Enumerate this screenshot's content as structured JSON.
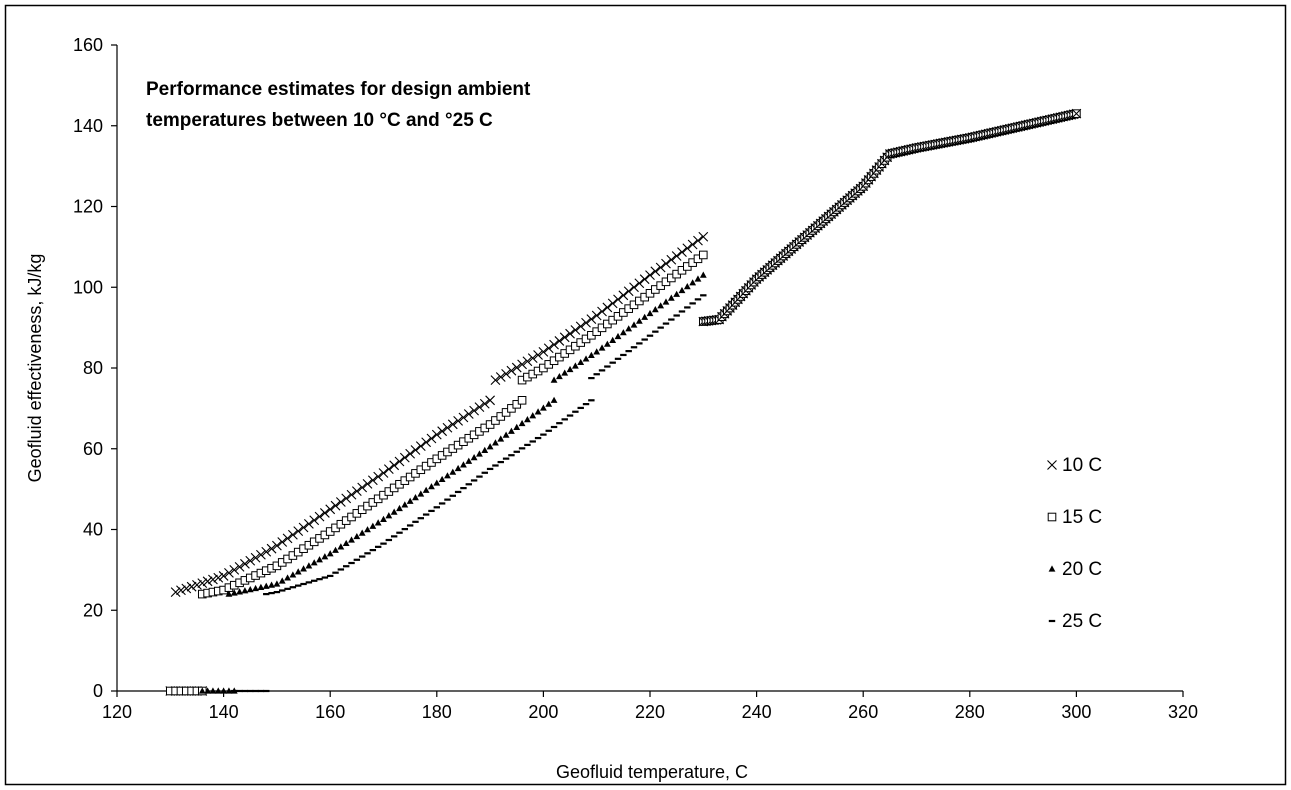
{
  "chart_data": {
    "type": "scatter",
    "title": "",
    "annotation_lines": [
      "Performance estimates for design ambient",
      "temperatures between 10 °C and °25 C"
    ],
    "xlabel": "Geofluid temperature, C",
    "ylabel": "Geofluid effectiveness, kJ/kg",
    "xlim": [
      120,
      320
    ],
    "ylim": [
      0,
      160
    ],
    "xticks": [
      120,
      140,
      160,
      180,
      200,
      220,
      240,
      260,
      280,
      300,
      320
    ],
    "yticks": [
      0,
      20,
      40,
      60,
      80,
      100,
      120,
      140,
      160
    ],
    "grid": false,
    "legend_position": "right",
    "series": [
      {
        "name": "10 C",
        "marker": "x",
        "segments": [
          {
            "x0": 130,
            "x1": 136,
            "step": 1,
            "points": [
              [
                130,
                0
              ],
              [
                136,
                0
              ]
            ]
          },
          {
            "x0": 131,
            "x1": 190,
            "step": 1,
            "points": [
              [
                131,
                24.5
              ],
              [
                140,
                28.5
              ],
              [
                150,
                36
              ],
              [
                160,
                45
              ],
              [
                170,
                54
              ],
              [
                180,
                63.5
              ],
              [
                190,
                72
              ]
            ]
          },
          {
            "x0": 191,
            "x1": 230,
            "step": 1,
            "points": [
              [
                191,
                77
              ],
              [
                200,
                84
              ],
              [
                210,
                93
              ],
              [
                220,
                103
              ],
              [
                230,
                112.5
              ]
            ]
          }
        ]
      },
      {
        "name": "15 C",
        "marker": "square",
        "segments": [
          {
            "x0": 130,
            "x1": 136,
            "step": 1,
            "points": [
              [
                130,
                0
              ],
              [
                136,
                0
              ]
            ]
          },
          {
            "x0": 136,
            "x1": 196,
            "step": 1,
            "points": [
              [
                136,
                24
              ],
              [
                140,
                25
              ],
              [
                150,
                31
              ],
              [
                160,
                39.5
              ],
              [
                170,
                48.5
              ],
              [
                180,
                57.5
              ],
              [
                190,
                66
              ],
              [
                196,
                72
              ]
            ]
          },
          {
            "x0": 196,
            "x1": 230,
            "step": 1,
            "points": [
              [
                196,
                77
              ],
              [
                200,
                80
              ],
              [
                210,
                89
              ],
              [
                220,
                98.5
              ],
              [
                230,
                108
              ]
            ]
          }
        ]
      },
      {
        "name": "20 C",
        "marker": "triangle",
        "segments": [
          {
            "x0": 136,
            "x1": 142,
            "step": 1,
            "points": [
              [
                136,
                0
              ],
              [
                142,
                0
              ]
            ]
          },
          {
            "x0": 141,
            "x1": 202,
            "step": 1,
            "points": [
              [
                141,
                24
              ],
              [
                150,
                26.5
              ],
              [
                160,
                34
              ],
              [
                170,
                42.5
              ],
              [
                180,
                51.5
              ],
              [
                190,
                60.5
              ],
              [
                202,
                72
              ]
            ]
          },
          {
            "x0": 202,
            "x1": 230,
            "step": 1,
            "points": [
              [
                202,
                77
              ],
              [
                210,
                84
              ],
              [
                220,
                93.5
              ],
              [
                230,
                103
              ]
            ]
          }
        ]
      },
      {
        "name": "25 C",
        "marker": "dash",
        "segments": [
          {
            "x0": 142,
            "x1": 148,
            "step": 1,
            "points": [
              [
                142,
                0
              ],
              [
                148,
                0
              ]
            ]
          },
          {
            "x0": 148,
            "x1": 209,
            "step": 1,
            "points": [
              [
                148,
                24
              ],
              [
                150,
                24.5
              ],
              [
                160,
                28.5
              ],
              [
                170,
                36.5
              ],
              [
                180,
                45.5
              ],
              [
                190,
                55
              ],
              [
                200,
                63.5
              ],
              [
                209,
                72
              ]
            ]
          },
          {
            "x0": 209,
            "x1": 230,
            "step": 1,
            "points": [
              [
                209,
                77.5
              ],
              [
                220,
                88
              ],
              [
                230,
                98
              ]
            ]
          }
        ]
      },
      {
        "name": "",
        "marker": "square-x",
        "in_legend": false,
        "segments": [
          {
            "x0": 230,
            "x1": 300,
            "step": 0.5,
            "points": [
              [
                230,
                91.5
              ],
              [
                233,
                92
              ],
              [
                240,
                102
              ],
              [
                250,
                113.5
              ],
              [
                260,
                125
              ],
              [
                265,
                133
              ],
              [
                270,
                134.5
              ],
              [
                280,
                137
              ],
              [
                290,
                140
              ],
              [
                300,
                143
              ]
            ]
          }
        ]
      }
    ]
  }
}
